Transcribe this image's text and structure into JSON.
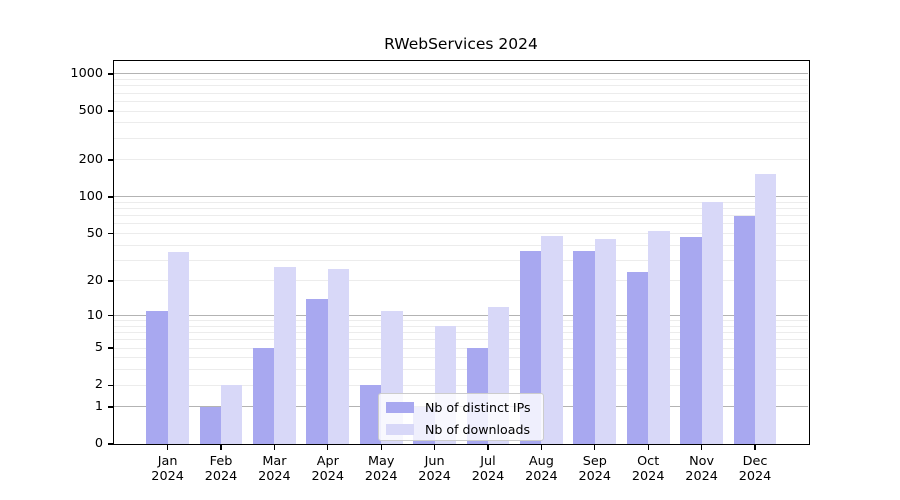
{
  "title": "RWebServices 2024",
  "chart_data": {
    "type": "bar",
    "title": "RWebServices 2024",
    "y_scale": "log1p",
    "ylim": [
      0,
      1300
    ],
    "grid": "horizontal (major gray at powers of 10, faint minors)",
    "year": "2024",
    "months": [
      "Jan",
      "Feb",
      "Mar",
      "Apr",
      "May",
      "Jun",
      "Jul",
      "Aug",
      "Sep",
      "Oct",
      "Nov",
      "Dec"
    ],
    "categories": [
      "Jan 2024",
      "Feb 2024",
      "Mar 2024",
      "Apr 2024",
      "May 2024",
      "Jun 2024",
      "Jul 2024",
      "Aug 2024",
      "Sep 2024",
      "Oct 2024",
      "Nov 2024",
      "Dec 2024"
    ],
    "series": [
      {
        "name": "Nb of distinct IPs",
        "color": "#a8a8f0",
        "values": [
          11,
          1,
          5,
          14,
          2,
          1,
          5,
          36,
          36,
          24,
          47,
          70
        ]
      },
      {
        "name": "Nb of downloads",
        "color": "#d8d8f8",
        "values": [
          35,
          2,
          26,
          25,
          11,
          8,
          12,
          48,
          45,
          52,
          90,
          153
        ]
      }
    ],
    "y_ticks": [
      0,
      1,
      2,
      5,
      10,
      20,
      50,
      100,
      200,
      500,
      1000
    ],
    "y_tick_labels": [
      "0",
      "1",
      "2",
      "5",
      "10",
      "20",
      "50",
      "100",
      "200",
      "500",
      "1000"
    ],
    "y_major_gridlines": [
      1,
      10,
      100,
      1000
    ],
    "y_minor_gridlines": [
      2,
      3,
      4,
      5,
      6,
      7,
      8,
      9,
      20,
      30,
      40,
      50,
      60,
      70,
      80,
      90,
      200,
      300,
      400,
      500,
      600,
      700,
      800,
      900
    ],
    "legend_position": "inside lower-center"
  },
  "colors": {
    "bar_distinct_ips": "#a8a8f0",
    "bar_downloads": "#d8d8f8",
    "major_grid": "#b3b3b3",
    "minor_grid": "#ececec",
    "spine": "#000000",
    "legend_border": "#cccccc",
    "background": "#ffffff"
  }
}
